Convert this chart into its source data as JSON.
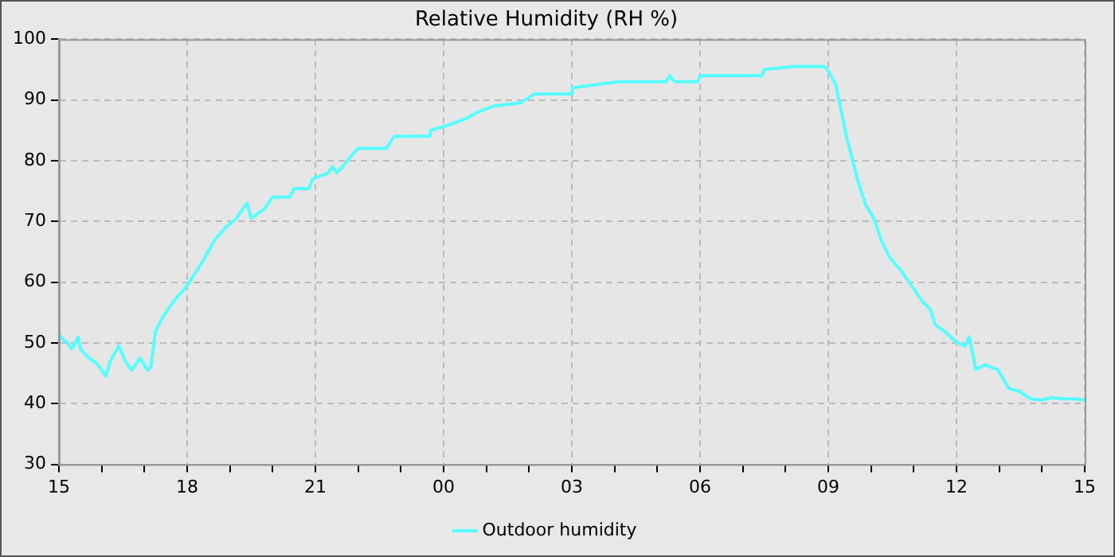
{
  "chart_data": {
    "type": "line",
    "title": "Relative Humidity (RH %)",
    "x": [
      15.0,
      15.1,
      15.2,
      15.3,
      15.45,
      15.5,
      15.67,
      15.9,
      16.1,
      16.2,
      16.4,
      16.55,
      16.7,
      16.9,
      17.07,
      17.15,
      17.26,
      17.45,
      17.7,
      17.95,
      18.05,
      18.33,
      18.65,
      18.9,
      19.15,
      19.4,
      19.5,
      19.8,
      20.0,
      20.4,
      20.5,
      20.85,
      20.93,
      21.3,
      21.4,
      21.5,
      21.7,
      21.8,
      22.0,
      22.65,
      22.85,
      23.67,
      23.7,
      24.17,
      24.55,
      24.8,
      25.18,
      25.8,
      26.13,
      27.0,
      27.02,
      28.1,
      29.2,
      29.3,
      29.4,
      29.95,
      30.0,
      31.45,
      31.5,
      32.2,
      32.9,
      32.98,
      33.17,
      33.3,
      33.42,
      33.55,
      33.68,
      33.87,
      34.06,
      34.25,
      34.44,
      34.69,
      34.95,
      35.2,
      35.39,
      35.5,
      35.77,
      36.02,
      36.2,
      36.3,
      36.45,
      36.66,
      36.97,
      37.22,
      37.48,
      37.73,
      37.98,
      38.23,
      38.5,
      38.75,
      39.0
    ],
    "series": [
      {
        "name": "Outdoor humidity",
        "color": "#55ffff",
        "values": [
          51.5,
          50.5,
          50,
          49,
          51,
          49,
          47.7,
          46.5,
          44.5,
          47,
          49.5,
          47,
          45.5,
          47.5,
          45.5,
          46,
          52,
          54.5,
          57,
          59,
          60,
          63,
          67,
          69,
          70.5,
          73,
          70.5,
          72,
          74,
          74,
          75.4,
          75.4,
          77,
          78,
          79,
          78,
          79.5,
          80.5,
          82,
          82,
          84,
          84,
          85,
          86,
          87,
          88,
          89,
          89.5,
          91,
          91,
          92,
          93,
          93,
          94,
          93,
          93,
          94,
          94,
          95,
          95.5,
          95.5,
          95,
          92.6,
          88.3,
          84,
          80.6,
          77,
          72.8,
          70.6,
          66.7,
          64,
          62,
          59.4,
          56.8,
          55.5,
          53,
          51.6,
          50,
          49.5,
          51,
          45.6,
          46.4,
          45.6,
          42.5,
          42,
          40.8,
          40.6,
          41,
          40.8,
          40.8,
          40.6
        ]
      }
    ],
    "xlim": [
      15,
      39
    ],
    "xticks": [
      {
        "value": 15,
        "label": "15"
      },
      {
        "value": 16,
        "label": null
      },
      {
        "value": 17,
        "label": null
      },
      {
        "value": 18,
        "label": "18"
      },
      {
        "value": 19,
        "label": null
      },
      {
        "value": 20,
        "label": null
      },
      {
        "value": 21,
        "label": "21"
      },
      {
        "value": 22,
        "label": null
      },
      {
        "value": 23,
        "label": null
      },
      {
        "value": 24,
        "label": "00"
      },
      {
        "value": 25,
        "label": null
      },
      {
        "value": 26,
        "label": null
      },
      {
        "value": 27,
        "label": "03"
      },
      {
        "value": 28,
        "label": null
      },
      {
        "value": 29,
        "label": null
      },
      {
        "value": 30,
        "label": "06"
      },
      {
        "value": 31,
        "label": null
      },
      {
        "value": 32,
        "label": null
      },
      {
        "value": 33,
        "label": "09"
      },
      {
        "value": 34,
        "label": null
      },
      {
        "value": 35,
        "label": null
      },
      {
        "value": 36,
        "label": "12"
      },
      {
        "value": 37,
        "label": null
      },
      {
        "value": 38,
        "label": null
      },
      {
        "value": 39,
        "label": "15"
      }
    ],
    "ylim": [
      30,
      100
    ],
    "yticks": [
      30,
      40,
      50,
      60,
      70,
      80,
      90,
      100
    ],
    "grid": true,
    "legend": "bottom",
    "marker": "none",
    "line_style": "solid"
  }
}
